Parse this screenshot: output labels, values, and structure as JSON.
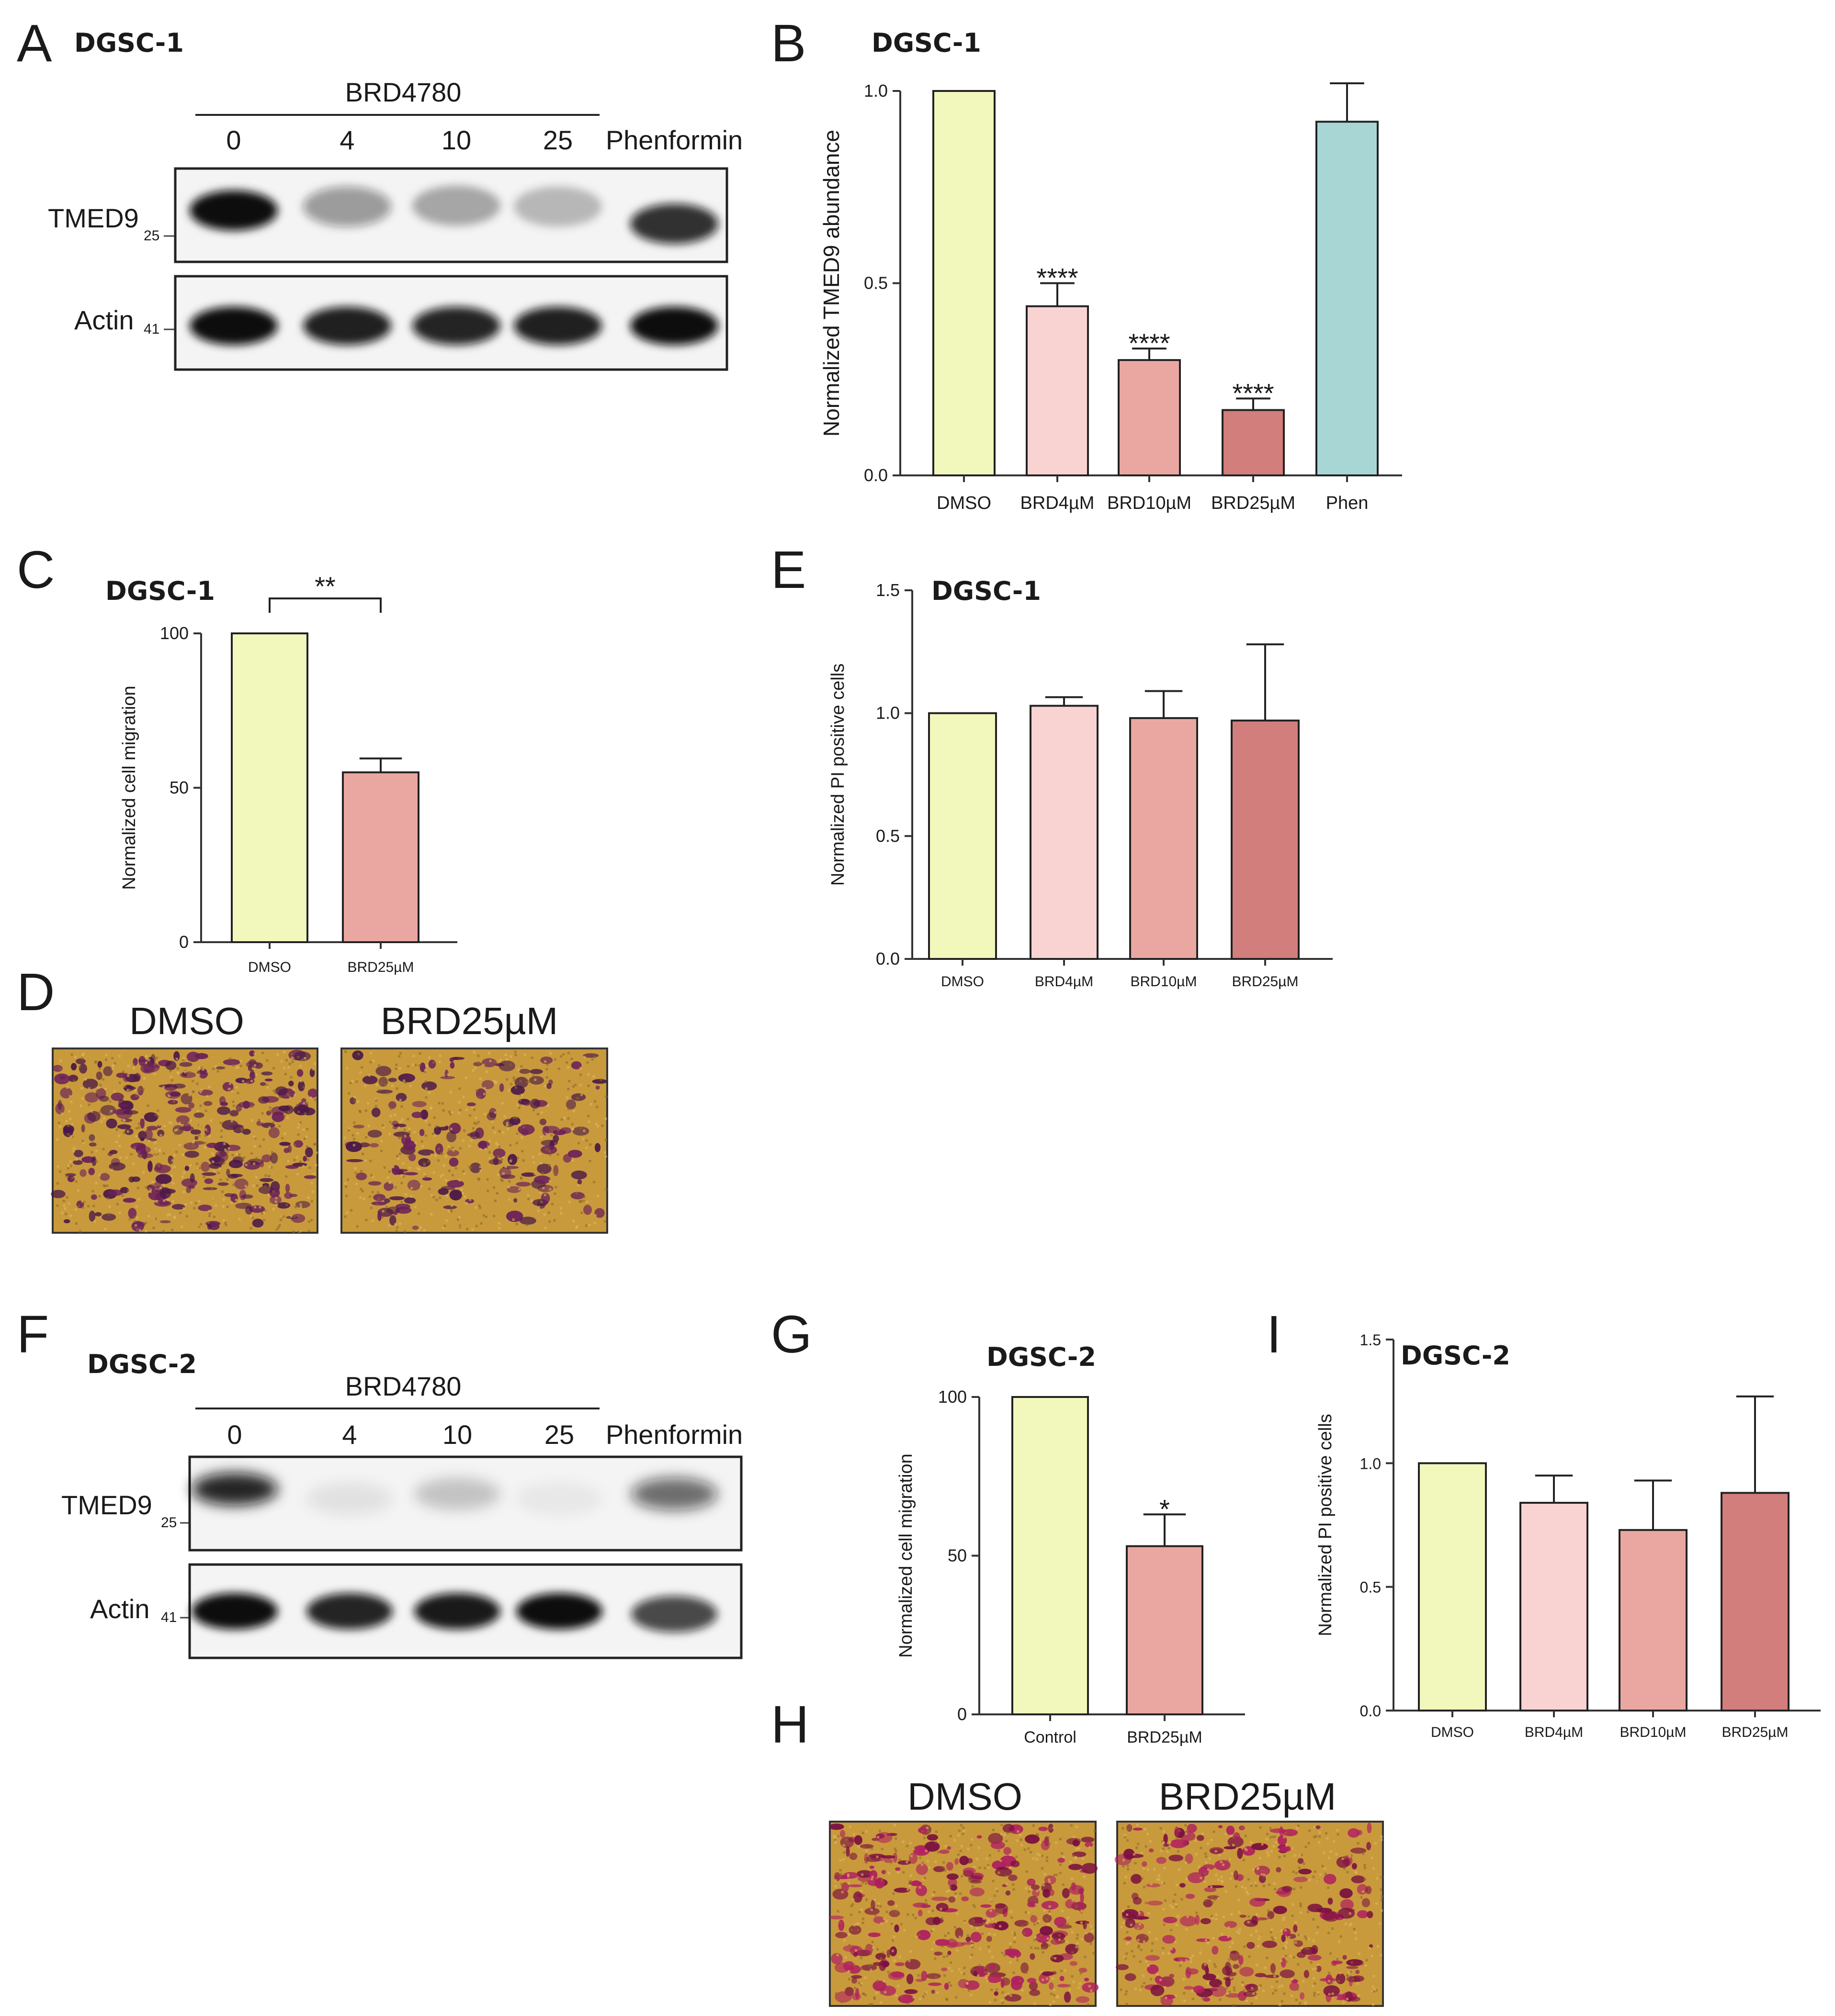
{
  "colors": {
    "dmso": "#f2f7bc",
    "brd4": "#f9d3d2",
    "brd10": "#eaa7a2",
    "brd25": "#d27e7c",
    "phen": "#a8d6d5",
    "axis": "#333333",
    "membrane": "#f4f4f4",
    "band": "#111111",
    "micro_bg": "#c99a3c",
    "micro_cell": "#6b1f5a",
    "micro_cell2": "#b0205f"
  },
  "panel_a": {
    "letter": "A",
    "cell_line": "DGSC-1",
    "treatment_label": "BRD4780",
    "lanes": [
      "0",
      "4",
      "10",
      "25",
      "Phenformin"
    ],
    "rows": [
      {
        "name": "TMED9",
        "marker": "25",
        "intensities": [
          1.0,
          0.4,
          0.32,
          0.25,
          0.85
        ]
      },
      {
        "name": "Actin",
        "marker": "41",
        "intensities": [
          1.0,
          0.92,
          0.9,
          0.92,
          1.0
        ]
      }
    ]
  },
  "panel_d": {
    "letter": "D",
    "labels": [
      "DMSO",
      "BRD25µM"
    ],
    "densities": [
      0.85,
      0.45
    ]
  },
  "panel_f": {
    "letter": "F",
    "cell_line": "DGSC-2",
    "treatment_label": "BRD4780",
    "lanes": [
      "0",
      "4",
      "10",
      "25",
      "Phenformin"
    ],
    "rows": [
      {
        "name": "TMED9",
        "marker": "25",
        "intensities": [
          0.9,
          0.08,
          0.2,
          0.05,
          0.6
        ]
      },
      {
        "name": "Actin",
        "marker": "41",
        "intensities": [
          1.0,
          0.9,
          0.95,
          1.0,
          0.75
        ]
      }
    ]
  },
  "panel_h": {
    "letter": "H",
    "labels": [
      "DMSO",
      "BRD25µM"
    ],
    "densities": [
      0.8,
      0.6
    ]
  },
  "chart_data": [
    {
      "id": "B",
      "letter": "B",
      "type": "bar",
      "title": "DGSC-1",
      "ylabel": "Normalized TMED9 abundance",
      "categories": [
        "DMSO",
        "BRD4µM",
        "BRD10µM",
        "BRD25µM",
        "Phen"
      ],
      "values": [
        1.0,
        0.44,
        0.3,
        0.17,
        0.92
      ],
      "errors": [
        0,
        0.06,
        0.03,
        0.03,
        0.1
      ],
      "annotations": [
        "",
        "****",
        "****",
        "****",
        ""
      ],
      "colors": [
        "dmso",
        "brd4",
        "brd10",
        "brd25",
        "phen"
      ],
      "ylim": [
        0,
        1.0
      ],
      "yticks": [
        "0.0",
        "0.5",
        "1.0"
      ]
    },
    {
      "id": "C",
      "letter": "C",
      "type": "bar",
      "title": "DGSC-1",
      "ylabel": "Normalized cell migration",
      "categories": [
        "DMSO",
        "BRD25µM"
      ],
      "values": [
        100,
        55
      ],
      "errors": [
        0,
        4.5
      ],
      "annotations": [
        "",
        ""
      ],
      "bracket": "**",
      "colors": [
        "dmso",
        "brd10"
      ],
      "ylim": [
        0,
        100
      ],
      "yticks": [
        "0",
        "50",
        "100"
      ]
    },
    {
      "id": "E",
      "letter": "E",
      "type": "bar",
      "title": "DGSC-1",
      "ylabel": "Normalized PI positive cells",
      "categories": [
        "DMSO",
        "BRD4µM",
        "BRD10µM",
        "BRD25µM"
      ],
      "values": [
        1.0,
        1.03,
        0.98,
        0.97
      ],
      "errors": [
        0,
        0.035,
        0.11,
        0.31
      ],
      "annotations": [
        "",
        "",
        "",
        ""
      ],
      "colors": [
        "dmso",
        "brd4",
        "brd10",
        "brd25"
      ],
      "ylim": [
        0,
        1.5
      ],
      "yticks": [
        "0.0",
        "0.5",
        "1.0",
        "1.5"
      ]
    },
    {
      "id": "G",
      "letter": "G",
      "type": "bar",
      "title": "DGSC-2",
      "ylabel": "Normalized cell migration",
      "categories": [
        "Control",
        "BRD25µM"
      ],
      "values": [
        100,
        53
      ],
      "errors": [
        0,
        10
      ],
      "annotations": [
        "",
        "*"
      ],
      "colors": [
        "dmso",
        "brd10"
      ],
      "ylim": [
        0,
        100
      ],
      "yticks": [
        "0",
        "50",
        "100"
      ]
    },
    {
      "id": "I",
      "letter": "I",
      "type": "bar",
      "title": "DGSC-2",
      "ylabel": "Normalized PI positive cells",
      "categories": [
        "DMSO",
        "BRD4µM",
        "BRD10µM",
        "BRD25µM"
      ],
      "values": [
        1.0,
        0.84,
        0.73,
        0.88
      ],
      "errors": [
        0,
        0.11,
        0.2,
        0.39
      ],
      "annotations": [
        "",
        "",
        "",
        ""
      ],
      "colors": [
        "dmso",
        "brd4",
        "brd10",
        "brd25"
      ],
      "ylim": [
        0,
        1.5
      ],
      "yticks": [
        "0.0",
        "0.5",
        "1.0",
        "1.5"
      ]
    }
  ]
}
